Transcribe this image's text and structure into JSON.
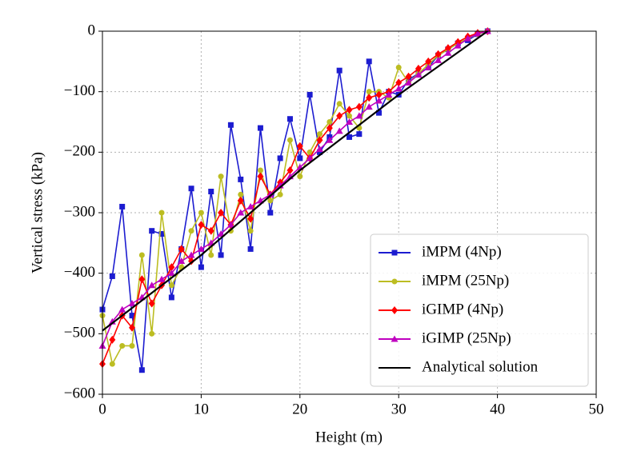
{
  "chart_data": {
    "type": "line",
    "x_label": "Height (m)",
    "y_label": "Vertical stress (kPa)",
    "xlim": [
      0,
      50
    ],
    "xticks": [
      0,
      10,
      20,
      30,
      40,
      50
    ],
    "ylim": [
      -600,
      0
    ],
    "yticks": [
      {
        "value": -600,
        "label": "−600"
      },
      {
        "value": -500,
        "label": "−500"
      },
      {
        "value": -400,
        "label": "−400"
      },
      {
        "value": -300,
        "label": "−300"
      },
      {
        "value": -200,
        "label": "−200"
      },
      {
        "value": -100,
        "label": "−100"
      },
      0
    ],
    "grid": true,
    "legend": "lower right",
    "x": [
      0,
      1,
      2,
      3,
      4,
      5,
      6,
      7,
      8,
      9,
      10,
      11,
      12,
      13,
      14,
      15,
      16,
      17,
      18,
      19,
      20,
      21,
      22,
      23,
      24,
      25,
      26,
      27,
      28,
      29,
      30,
      31,
      32,
      33,
      34,
      35,
      36,
      37,
      38,
      39
    ],
    "series": [
      {
        "name": "iMPM (4Np)",
        "color": "#1c1cd0",
        "marker": "square",
        "values": [
          -460,
          -405,
          -290,
          -470,
          -560,
          -330,
          -335,
          -440,
          -360,
          -260,
          -390,
          -265,
          -370,
          -155,
          -245,
          -360,
          -160,
          -300,
          -210,
          -145,
          -210,
          -105,
          -200,
          -175,
          -65,
          -175,
          -170,
          -50,
          -135,
          -100,
          -105,
          -80,
          -70,
          -60,
          -40,
          -30,
          -20,
          -15,
          -5,
          0
        ]
      },
      {
        "name": "iMPM (25Np)",
        "color": "#bcbd22",
        "marker": "circle",
        "values": [
          -470,
          -550,
          -520,
          -520,
          -370,
          -500,
          -300,
          -420,
          -390,
          -330,
          -300,
          -370,
          -240,
          -330,
          -270,
          -330,
          -230,
          -280,
          -270,
          -180,
          -240,
          -200,
          -170,
          -150,
          -120,
          -140,
          -160,
          -100,
          -100,
          -110,
          -60,
          -85,
          -70,
          -55,
          -40,
          -30,
          -20,
          -12,
          -5,
          0
        ]
      },
      {
        "name": "iGIMP (4Np)",
        "color": "#ff0000",
        "marker": "diamond",
        "values": [
          -550,
          -510,
          -470,
          -490,
          -410,
          -450,
          -420,
          -390,
          -360,
          -380,
          -320,
          -330,
          -300,
          -320,
          -280,
          -310,
          -240,
          -270,
          -250,
          -230,
          -190,
          -210,
          -180,
          -160,
          -140,
          -130,
          -125,
          -110,
          -105,
          -100,
          -85,
          -75,
          -62,
          -50,
          -38,
          -28,
          -18,
          -9,
          -3,
          0
        ]
      },
      {
        "name": "iGIMP (25Np)",
        "color": "#bf00bf",
        "marker": "triangle",
        "values": [
          -520,
          -480,
          -460,
          -450,
          -440,
          -420,
          -410,
          -400,
          -380,
          -370,
          -360,
          -350,
          -335,
          -320,
          -300,
          -290,
          -280,
          -270,
          -255,
          -240,
          -225,
          -210,
          -195,
          -180,
          -165,
          -150,
          -140,
          -125,
          -115,
          -105,
          -95,
          -85,
          -72,
          -60,
          -48,
          -36,
          -24,
          -12,
          -4,
          0
        ]
      },
      {
        "name": "Analytical solution",
        "color": "#000000",
        "marker": "none",
        "x": [
          0,
          10,
          20,
          30,
          39
        ],
        "values": [
          -495,
          -370,
          -230,
          -105,
          0
        ]
      }
    ]
  }
}
